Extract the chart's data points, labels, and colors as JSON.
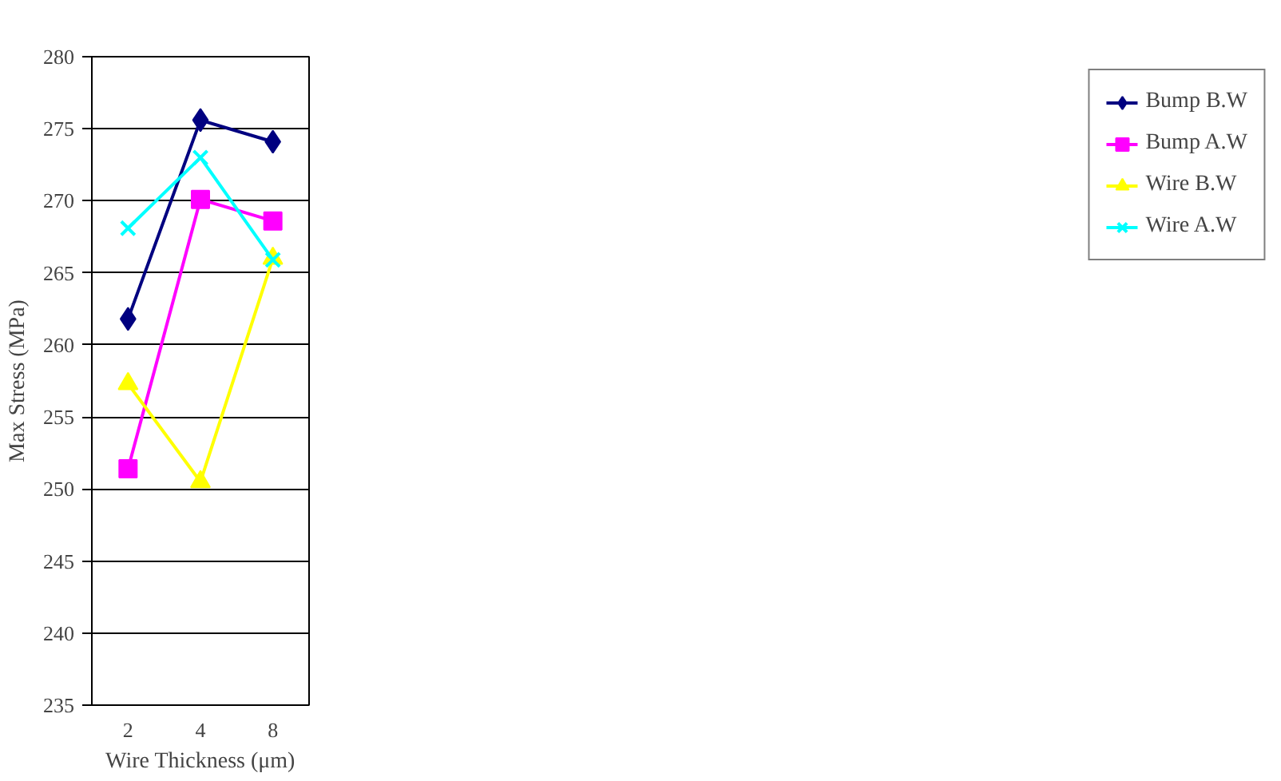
{
  "chart_data": {
    "type": "line",
    "xlabel": "Wire Thickness (μm)",
    "ylabel": "Max Stress (MPa)",
    "categories": [
      "2",
      "4",
      "8"
    ],
    "series": [
      {
        "name": "Bump B.W",
        "color": "#000080",
        "marker": "diamond",
        "values": [
          261.8,
          275.6,
          274.1
        ]
      },
      {
        "name": "Bump A.W",
        "color": "#ff00ff",
        "marker": "square",
        "values": [
          251.4,
          270.1,
          268.6
        ]
      },
      {
        "name": "Wire B.W",
        "color": "#ffff00",
        "marker": "triangle",
        "values": [
          257.3,
          250.5,
          266.0
        ]
      },
      {
        "name": "Wire A.W",
        "color": "#00ffff",
        "marker": "cross",
        "values": [
          268.1,
          273.0,
          265.9
        ]
      }
    ],
    "ylim": [
      235,
      280
    ],
    "yticks": [
      235,
      240,
      245,
      250,
      255,
      260,
      265,
      270,
      275,
      280
    ],
    "grid": "y",
    "legend": "right",
    "line_style": "solid"
  }
}
